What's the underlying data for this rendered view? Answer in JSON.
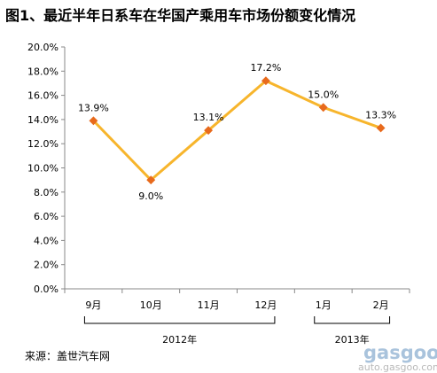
{
  "title": "图1、最近半年日系车在华国产乘用车市场份额变化情况",
  "source": "来源：盖世汽车网",
  "watermark": {
    "brand": "gasgoo",
    "url": "auto.gasgoo.com"
  },
  "colors": {
    "line": "#F7B52C",
    "marker": "#E86A1C",
    "axis": "#888888"
  },
  "chart_data": {
    "type": "line",
    "categories": [
      "9月",
      "10月",
      "11月",
      "12月",
      "1月",
      "2月"
    ],
    "series": [
      {
        "values": [
          13.9,
          9.0,
          13.1,
          17.2,
          15.0,
          13.3
        ],
        "labels": [
          "13.9%",
          "9.0%",
          "13.1%",
          "17.2%",
          "15.0%",
          "13.3%"
        ]
      }
    ],
    "yticks": [
      "0.0%",
      "2.0%",
      "4.0%",
      "6.0%",
      "8.0%",
      "10.0%",
      "12.0%",
      "14.0%",
      "16.0%",
      "18.0%",
      "20.0%"
    ],
    "ylim": [
      0,
      20
    ],
    "groups": [
      {
        "label": "2012年",
        "from": 0,
        "to": 3
      },
      {
        "label": "2013年",
        "from": 4,
        "to": 5
      }
    ],
    "grid": false,
    "legend": "none"
  }
}
